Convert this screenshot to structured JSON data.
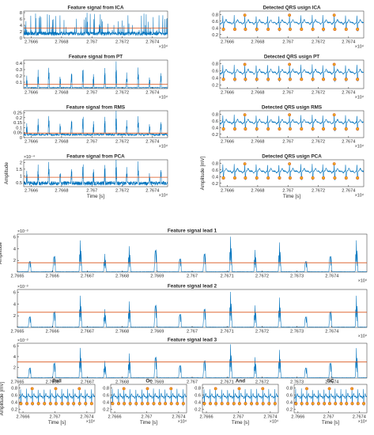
{
  "colors": {
    "signal": "#0072BD",
    "threshold": "#D95319",
    "marker": "#EDB120",
    "axis": "#262626"
  },
  "chart_data": [
    {
      "id": "ica_feature",
      "type": "line",
      "title": "Feature signal from ICA",
      "xlabel": "",
      "ylabel": "",
      "xlim": [
        27665.5,
        27675
      ],
      "ylim": [
        0,
        8.5
      ],
      "x_exponent": "×10⁴",
      "xticks": [
        27666,
        27668,
        27670,
        27672,
        27674
      ],
      "xtick_labels": [
        "2.7666",
        "2.7668",
        "2.767",
        "2.7672",
        "2.7674"
      ],
      "yticks": [
        0,
        2,
        4,
        6,
        8
      ],
      "ytick_labels": [
        "0",
        "2",
        "4",
        "6",
        "8"
      ],
      "ytick_exponent": "",
      "series": [
        {
          "kind": "noise_feature",
          "peak_max": 8,
          "base": 0.8
        }
      ],
      "threshold": 3.1,
      "beats": [],
      "qrs_markers": false
    },
    {
      "id": "ica_qrs",
      "type": "line",
      "title": "Detected QRS usign ICA",
      "xlabel": "",
      "ylabel": "",
      "xlim": [
        27665.5,
        27675
      ],
      "ylim": [
        0.1,
        0.9
      ],
      "x_exponent": "×10⁴",
      "xticks": [
        27666,
        27668,
        27670,
        27672,
        27674
      ],
      "xtick_labels": [
        "2.7666",
        "2.7668",
        "2.767",
        "2.7672",
        "2.7674"
      ],
      "yticks": [
        0.2,
        0.4,
        0.6,
        0.8
      ],
      "ytick_labels": [
        "0.2",
        "0.4",
        "0.6",
        "0.8"
      ],
      "ytick_exponent": "",
      "series": [
        {
          "kind": "ecg",
          "baseline": 0.56,
          "peak": 0.78,
          "trough": 0.3
        }
      ],
      "threshold": null,
      "qrs_markers": true,
      "beats": [
        27665.7,
        27666.45,
        27667.15,
        27667.9,
        27668.65,
        27669.4,
        27670.1,
        27670.85,
        27671.6,
        27672.3,
        27673.05,
        27673.8,
        27674.55
      ]
    },
    {
      "id": "pt_feature",
      "type": "line",
      "title": "Feature signal from PT",
      "xlabel": "",
      "ylabel": "",
      "xlim": [
        27665.5,
        27675
      ],
      "ylim": [
        0,
        0.45
      ],
      "x_exponent": "×10⁴",
      "xticks": [
        27666,
        27668,
        27670,
        27672,
        27674
      ],
      "xtick_labels": [
        "2.7666",
        "2.7668",
        "2.767",
        "2.7672",
        "2.7674"
      ],
      "yticks": [
        0.1,
        0.2,
        0.3,
        0.4
      ],
      "ytick_labels": [
        "0.1",
        "0.2",
        "0.3",
        "0.4"
      ],
      "ytick_exponent": "",
      "series": [
        {
          "kind": "spiky",
          "peak_max": 0.42,
          "base": 0.01
        }
      ],
      "threshold": 0.07,
      "beats": [
        27665.7,
        27666.45,
        27667.15,
        27667.9,
        27668.65,
        27669.4,
        27670.1,
        27670.85,
        27671.6,
        27672.3,
        27673.05,
        27673.8,
        27674.55
      ],
      "qrs_markers": false
    },
    {
      "id": "pt_qrs",
      "type": "line",
      "title": "Detected QRS usign PT",
      "xlabel": "",
      "ylabel": "",
      "xlim": [
        27665.5,
        27675
      ],
      "ylim": [
        0.1,
        0.9
      ],
      "x_exponent": "×10⁴",
      "xticks": [
        27666,
        27668,
        27670,
        27672,
        27674
      ],
      "xtick_labels": [
        "2.7666",
        "2.7668",
        "2.767",
        "2.7672",
        "2.7674"
      ],
      "yticks": [
        0.2,
        0.4,
        0.6,
        0.8
      ],
      "ytick_labels": [
        "0.2",
        "0.4",
        "0.6",
        "0.8"
      ],
      "ytick_exponent": "",
      "series": [
        {
          "kind": "ecg",
          "baseline": 0.56,
          "peak": 0.78,
          "trough": 0.3
        }
      ],
      "threshold": null,
      "qrs_markers": true,
      "beats": [
        27665.7,
        27666.45,
        27667.15,
        27667.9,
        27668.65,
        27669.4,
        27670.1,
        27670.85,
        27671.6,
        27672.3,
        27673.05,
        27673.8,
        27674.55
      ]
    },
    {
      "id": "rms_feature",
      "type": "line",
      "title": "Feature signal from RMS",
      "xlabel": "",
      "ylabel": "",
      "xlim": [
        27665.5,
        27675
      ],
      "ylim": [
        0,
        0.27
      ],
      "x_exponent": "×10⁴",
      "xticks": [
        27666,
        27668,
        27670,
        27672,
        27674
      ],
      "xtick_labels": [
        "2.7666",
        "2.7668",
        "2.767",
        "2.7672",
        "2.7674"
      ],
      "yticks": [
        0,
        0.05,
        0.1,
        0.15,
        0.2,
        0.25
      ],
      "ytick_labels": [
        "0",
        "0.05",
        "0.1",
        "0.15",
        "0.2",
        "0.25"
      ],
      "ytick_exponent": "",
      "series": [
        {
          "kind": "spiky",
          "peak_max": 0.25,
          "base": 0.02
        }
      ],
      "threshold": 0.045,
      "beats": [
        27665.7,
        27666.45,
        27667.15,
        27667.9,
        27668.65,
        27669.4,
        27670.1,
        27670.85,
        27671.6,
        27672.3,
        27673.05,
        27673.8,
        27674.55
      ],
      "qrs_markers": false
    },
    {
      "id": "rms_qrs",
      "type": "line",
      "title": "Detected QRS usign RMS",
      "xlabel": "",
      "ylabel": "",
      "xlim": [
        27665.5,
        27675
      ],
      "ylim": [
        0.1,
        0.9
      ],
      "x_exponent": "×10⁴",
      "xticks": [
        27666,
        27668,
        27670,
        27672,
        27674
      ],
      "xtick_labels": [
        "2.7666",
        "2.7668",
        "2.767",
        "2.7672",
        "2.7674"
      ],
      "yticks": [
        0.2,
        0.4,
        0.6,
        0.8
      ],
      "ytick_labels": [
        "0.2",
        "0.4",
        "0.6",
        "0.8"
      ],
      "ytick_exponent": "",
      "series": [
        {
          "kind": "ecg",
          "baseline": 0.56,
          "peak": 0.78,
          "trough": 0.3
        }
      ],
      "threshold": null,
      "qrs_markers": true,
      "beats": [
        27665.7,
        27666.45,
        27667.15,
        27667.9,
        27668.65,
        27669.4,
        27670.1,
        27670.85,
        27671.6,
        27672.3,
        27673.05,
        27673.8,
        27674.55
      ]
    },
    {
      "id": "pca_feature",
      "type": "line",
      "title": "Feature signal from PCA",
      "xlabel": "Time [s]",
      "ylabel": "Amplitude",
      "xlim": [
        27665.5,
        27675
      ],
      "ylim": [
        0.2,
        2.2
      ],
      "x_exponent": "×10⁴",
      "xticks": [
        27666,
        27668,
        27670,
        27672,
        27674
      ],
      "xtick_labels": [
        "2.7666",
        "2.7668",
        "2.767",
        "2.7672",
        "2.7674"
      ],
      "yticks": [
        0.5,
        1,
        1.5,
        2
      ],
      "ytick_labels": [
        "0.5",
        "1",
        "1.5",
        "2"
      ],
      "ytick_exponent": "×10⁻⁴",
      "series": [
        {
          "kind": "spiky",
          "peak_max": 2.0,
          "base": 0.3
        }
      ],
      "threshold": 0.9,
      "beats": [
        27665.7,
        27666.45,
        27667.15,
        27667.9,
        27668.65,
        27669.4,
        27670.1,
        27670.85,
        27671.6,
        27672.3,
        27673.05,
        27673.8,
        27674.55
      ],
      "qrs_markers": false
    },
    {
      "id": "pca_qrs",
      "type": "line",
      "title": "Detected QRS usign PCA",
      "xlabel": "Time [s]",
      "ylabel": "Amplitude [mV]",
      "xlim": [
        27665.5,
        27675
      ],
      "ylim": [
        0.1,
        0.9
      ],
      "x_exponent": "×10⁴",
      "xticks": [
        27666,
        27668,
        27670,
        27672,
        27674
      ],
      "xtick_labels": [
        "2.7666",
        "2.7668",
        "2.767",
        "2.7672",
        "2.7674"
      ],
      "yticks": [
        0.2,
        0.4,
        0.6,
        0.8
      ],
      "ytick_labels": [
        "0.2",
        "0.4",
        "0.6",
        "0.8"
      ],
      "ytick_exponent": "",
      "series": [
        {
          "kind": "ecg",
          "baseline": 0.56,
          "peak": 0.78,
          "trough": 0.3
        }
      ],
      "threshold": null,
      "qrs_markers": true,
      "beats": [
        27665.7,
        27666.45,
        27667.15,
        27667.9,
        27668.65,
        27669.4,
        27670.1,
        27670.85,
        27671.6,
        27672.3,
        27673.05,
        27673.8,
        27674.55
      ]
    },
    {
      "id": "lead1",
      "type": "line",
      "title": "Feature signal lead 1",
      "xlabel": "",
      "ylabel": "Amplitude",
      "xlim": [
        27665,
        27675
      ],
      "ylim": [
        0,
        6.5
      ],
      "x_exponent": "×10⁴",
      "xticks": [
        27665,
        27666,
        27667,
        27668,
        27669,
        27670,
        27671,
        27672,
        27673,
        27674
      ],
      "xtick_labels": [
        "2.7665",
        "2.7666",
        "2.7667",
        "2.7668",
        "2.7669",
        "2.767",
        "2.7671",
        "2.7672",
        "2.7673",
        "2.7674"
      ],
      "yticks": [
        2,
        4,
        6
      ],
      "ytick_labels": [
        "2",
        "4",
        "6"
      ],
      "ytick_exponent": "×10⁻³",
      "series": [
        {
          "kind": "spiky",
          "peak_max": 6.0,
          "base": 0.05
        }
      ],
      "threshold": 1.6,
      "beats": [
        27665.35,
        27666.05,
        27666.8,
        27667.5,
        27668.2,
        27668.95,
        27669.65,
        27670.35,
        27671.1,
        27671.8,
        27672.5,
        27673.25,
        27673.95,
        27674.7
      ],
      "qrs_markers": false
    },
    {
      "id": "lead2",
      "type": "line",
      "title": "Feature signal lead 2",
      "xlabel": "",
      "ylabel": "",
      "xlim": [
        27665,
        27675
      ],
      "ylim": [
        0,
        6.5
      ],
      "x_exponent": "×10⁴",
      "xticks": [
        27665,
        27666,
        27667,
        27668,
        27669,
        27670,
        27671,
        27672,
        27673,
        27674
      ],
      "xtick_labels": [
        "2.7665",
        "2.7666",
        "2.7667",
        "2.7668",
        "2.7669",
        "2.767",
        "2.7671",
        "2.7672",
        "2.7673",
        "2.7674"
      ],
      "yticks": [
        2,
        4,
        6
      ],
      "ytick_labels": [
        "2",
        "4",
        "6"
      ],
      "ytick_exponent": "×10⁻³",
      "series": [
        {
          "kind": "spiky",
          "peak_max": 6.0,
          "base": 0.05
        }
      ],
      "threshold": 2.6,
      "beats": [
        27665.35,
        27666.05,
        27666.8,
        27667.5,
        27668.2,
        27668.95,
        27669.65,
        27670.35,
        27671.1,
        27671.8,
        27672.5,
        27673.25,
        27673.95,
        27674.7
      ],
      "qrs_markers": false
    },
    {
      "id": "lead3",
      "type": "line",
      "title": "Feature signal lead 3",
      "xlabel": "",
      "ylabel": "",
      "xlim": [
        27665,
        27675
      ],
      "ylim": [
        0,
        6.5
      ],
      "x_exponent": "×10⁴",
      "xticks": [
        27665,
        27666,
        27667,
        27668,
        27669,
        27670,
        27671,
        27672,
        27673,
        27674
      ],
      "xtick_labels": [
        "2.7665",
        "2.7666",
        "2.7667",
        "2.7668",
        "2.7669",
        "2.767",
        "2.7671",
        "2.7672",
        "2.7673",
        "2.7674"
      ],
      "yticks": [
        2,
        4,
        6
      ],
      "ytick_labels": [
        "2",
        "4",
        "6"
      ],
      "ytick_exponent": "×10⁻³",
      "series": [
        {
          "kind": "spiky",
          "peak_max": 6.2,
          "base": 0.05
        }
      ],
      "threshold": 3.0,
      "beats": [
        27665.35,
        27666.05,
        27666.8,
        27667.5,
        27668.2,
        27668.95,
        27669.65,
        27670.35,
        27671.1,
        27671.8,
        27672.5,
        27673.25,
        27673.95,
        27674.7
      ],
      "qrs_markers": false
    },
    {
      "id": "poll",
      "type": "line",
      "title": "Poll",
      "xlabel": "Time [s]",
      "ylabel": "Amplitude [mV]",
      "xlim": [
        27665.5,
        27675
      ],
      "ylim": [
        0.1,
        0.9
      ],
      "x_exponent": "×10⁴",
      "xticks": [
        27666,
        27670,
        27674
      ],
      "xtick_labels": [
        "2.7666",
        "2.767",
        "2.7674"
      ],
      "yticks": [
        0.2,
        0.4,
        0.6,
        0.8
      ],
      "ytick_labels": [
        "0.2",
        "0.4",
        "0.6",
        "0.8"
      ],
      "ytick_exponent": "",
      "series": [
        {
          "kind": "ecg",
          "baseline": 0.56,
          "peak": 0.78,
          "trough": 0.3
        }
      ],
      "threshold": null,
      "qrs_markers": true,
      "beats": [
        27665.7,
        27666.45,
        27667.15,
        27667.9,
        27668.65,
        27669.4,
        27670.1,
        27670.85,
        27671.6,
        27672.3,
        27673.05,
        27673.8,
        27674.55
      ]
    },
    {
      "id": "or",
      "type": "line",
      "title": "Or",
      "xlabel": "Time [s]",
      "ylabel": "",
      "xlim": [
        27665.5,
        27675
      ],
      "ylim": [
        0.1,
        0.9
      ],
      "x_exponent": "×10⁴",
      "xticks": [
        27666,
        27670,
        27674
      ],
      "xtick_labels": [
        "2.7666",
        "2.767",
        "2.7674"
      ],
      "yticks": [
        0.2,
        0.4,
        0.6,
        0.8
      ],
      "ytick_labels": [
        "0.2",
        "0.4",
        "0.6",
        "0.8"
      ],
      "ytick_exponent": "",
      "series": [
        {
          "kind": "ecg",
          "baseline": 0.56,
          "peak": 0.78,
          "trough": 0.3
        }
      ],
      "threshold": null,
      "qrs_markers": true,
      "beats": [
        27665.7,
        27666.45,
        27667.15,
        27667.9,
        27668.65,
        27669.4,
        27670.1,
        27670.85,
        27671.6,
        27672.3,
        27673.05,
        27673.8,
        27674.55
      ]
    },
    {
      "id": "and",
      "type": "line",
      "title": "And",
      "xlabel": "Time [s]",
      "ylabel": "",
      "xlim": [
        27665.5,
        27675
      ],
      "ylim": [
        0.1,
        0.9
      ],
      "x_exponent": "×10⁴",
      "xticks": [
        27666,
        27670,
        27674
      ],
      "xtick_labels": [
        "2.7666",
        "2.767",
        "2.7674"
      ],
      "yticks": [
        0.2,
        0.4,
        0.6,
        0.8
      ],
      "ytick_labels": [
        "0.2",
        "0.4",
        "0.6",
        "0.8"
      ],
      "ytick_exponent": "",
      "series": [
        {
          "kind": "ecg",
          "baseline": 0.56,
          "peak": 0.78,
          "trough": 0.3
        }
      ],
      "threshold": null,
      "qrs_markers": true,
      "beats": [
        27665.7,
        27666.45,
        27667.15,
        27667.9,
        27668.65,
        27669.4,
        27670.1,
        27670.85,
        27671.6,
        27672.3,
        27673.05,
        27673.8,
        27674.55
      ]
    },
    {
      "id": "sc",
      "type": "line",
      "title": "SC",
      "xlabel": "Time [s]",
      "ylabel": "",
      "xlim": [
        27665.5,
        27675
      ],
      "ylim": [
        0.1,
        0.9
      ],
      "x_exponent": "×10⁴",
      "xticks": [
        27666,
        27670,
        27674
      ],
      "xtick_labels": [
        "2.7666",
        "2.767",
        "2.7674"
      ],
      "yticks": [
        0.2,
        0.4,
        0.6,
        0.8
      ],
      "ytick_labels": [
        "0.2",
        "0.4",
        "0.6",
        "0.8"
      ],
      "ytick_exponent": "",
      "series": [
        {
          "kind": "ecg",
          "baseline": 0.56,
          "peak": 0.78,
          "trough": 0.3
        }
      ],
      "threshold": null,
      "qrs_markers": true,
      "beats": [
        27665.7,
        27666.45,
        27667.15,
        27667.9,
        27668.65,
        27669.4,
        27670.1,
        27670.85,
        27671.6,
        27672.3,
        27673.05,
        27673.8,
        27674.55
      ]
    }
  ]
}
